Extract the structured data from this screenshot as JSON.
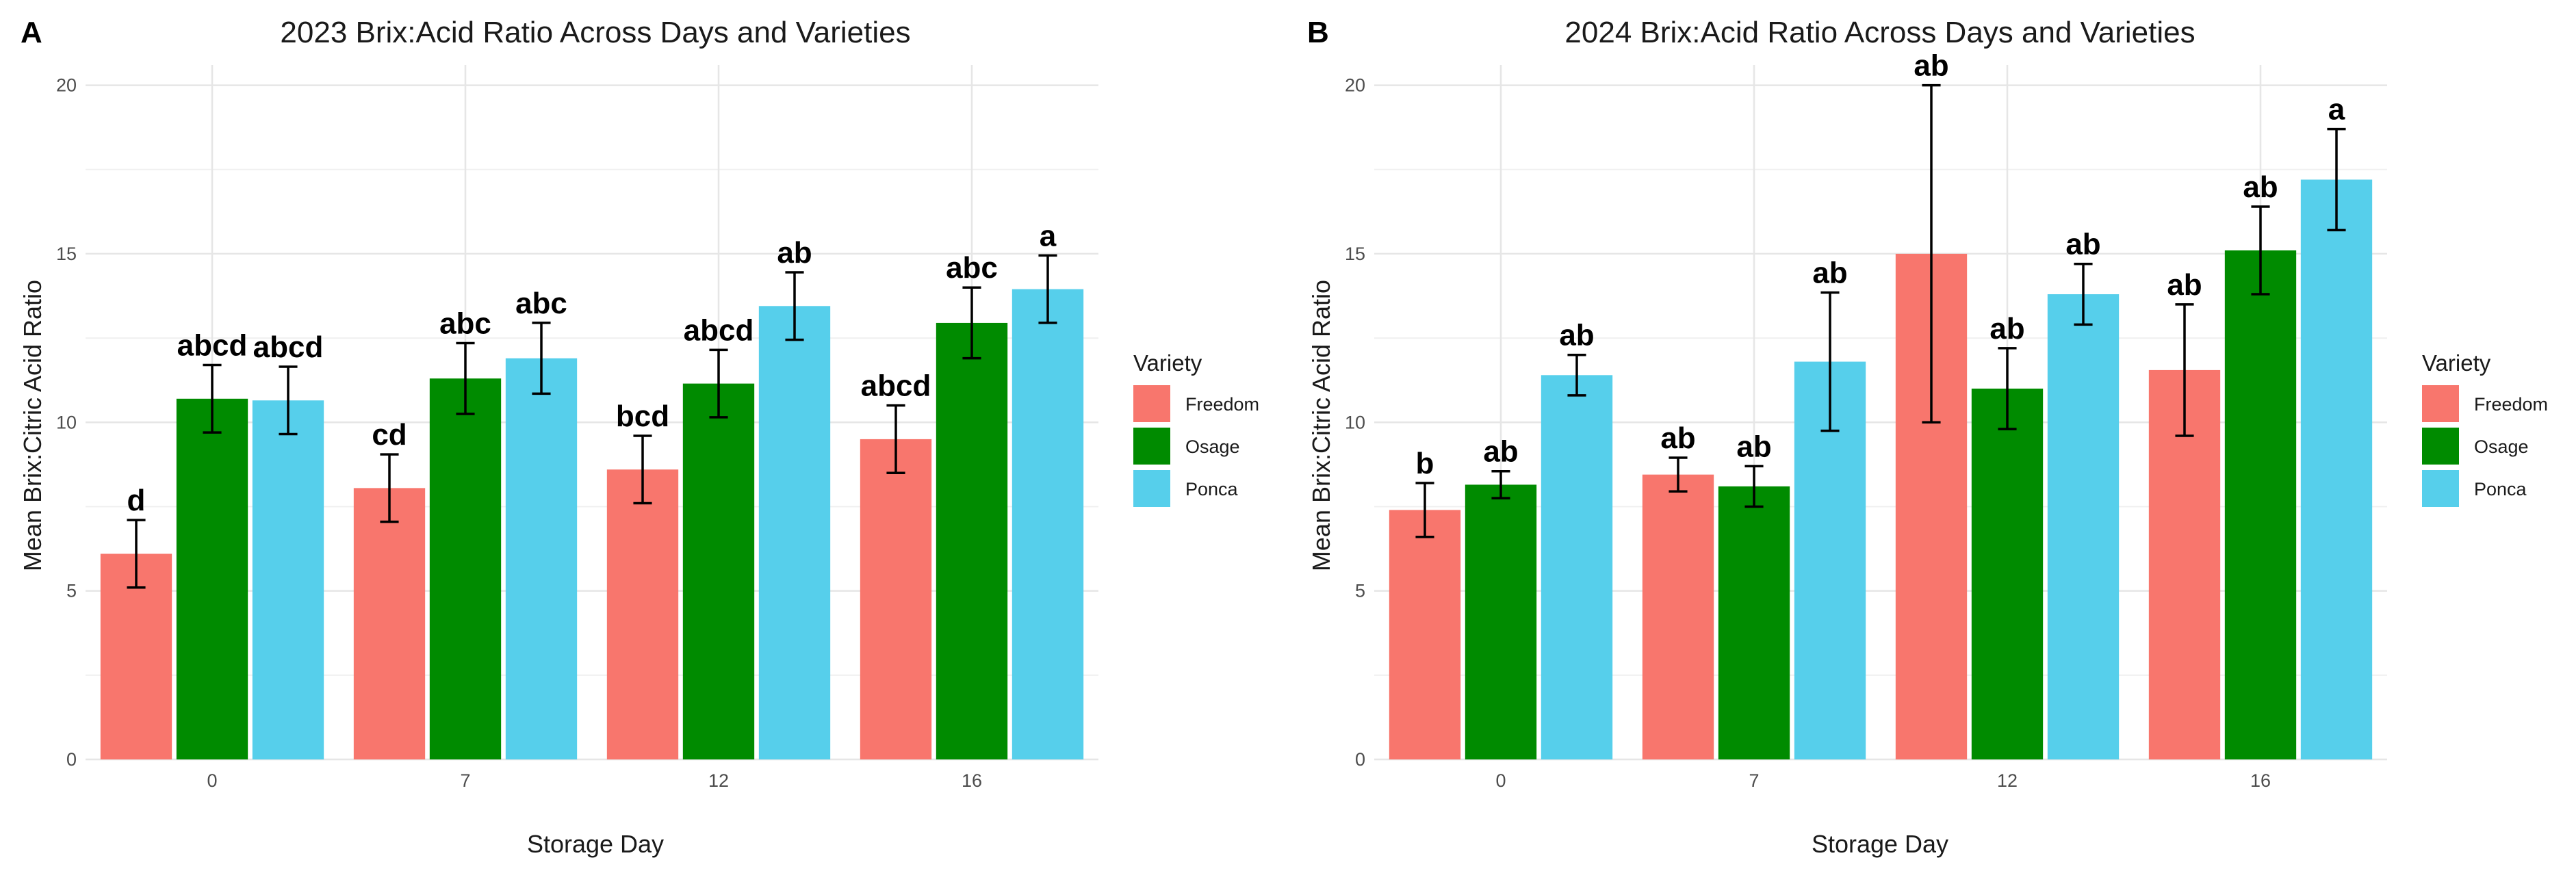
{
  "legend": {
    "title": "Variety",
    "items": [
      {
        "name": "Freedom",
        "color": "#F8766D"
      },
      {
        "name": "Osage",
        "color": "#008B00"
      },
      {
        "name": "Ponca",
        "color": "#56CFEB"
      }
    ]
  },
  "chart_data": [
    {
      "type": "bar",
      "panel": "A",
      "title": "2023 Brix:Acid Ratio Across Days and Varieties",
      "xlabel": "Storage Day",
      "ylabel": "Mean Brix:Citric Acid Ratio",
      "categories": [
        "0",
        "7",
        "12",
        "16"
      ],
      "ylim": [
        0,
        20.6
      ],
      "yticks": [
        0,
        5,
        10,
        15,
        20
      ],
      "series": [
        {
          "name": "Freedom",
          "color": "#F8766D",
          "values": [
            6.1,
            8.05,
            8.6,
            9.5
          ],
          "errors": [
            1.0,
            1.0,
            1.0,
            1.0
          ],
          "letters": [
            "d",
            "cd",
            "bcd",
            "abcd"
          ]
        },
        {
          "name": "Osage",
          "color": "#008B00",
          "values": [
            10.7,
            11.3,
            11.15,
            12.95
          ],
          "errors": [
            1.0,
            1.05,
            1.0,
            1.05
          ],
          "letters": [
            "abcd",
            "abc",
            "abcd",
            "abc"
          ]
        },
        {
          "name": "Ponca",
          "color": "#56CFEB",
          "values": [
            10.65,
            11.9,
            13.45,
            13.95
          ],
          "errors": [
            1.0,
            1.05,
            1.0,
            1.0
          ],
          "letters": [
            "abcd",
            "abc",
            "ab",
            "a"
          ]
        }
      ],
      "grid": true
    },
    {
      "type": "bar",
      "panel": "B",
      "title": "2024 Brix:Acid Ratio Across Days and Varieties",
      "xlabel": "Storage Day",
      "ylabel": "Mean Brix:Citric Acid Ratio",
      "categories": [
        "0",
        "7",
        "12",
        "16"
      ],
      "ylim": [
        0,
        20.6
      ],
      "yticks": [
        0,
        5,
        10,
        15,
        20
      ],
      "series": [
        {
          "name": "Freedom",
          "color": "#F8766D",
          "values": [
            7.4,
            8.45,
            15.0,
            11.55
          ],
          "errors": [
            0.8,
            0.5,
            5.0,
            1.95
          ],
          "letters": [
            "b",
            "ab",
            "ab",
            "ab"
          ]
        },
        {
          "name": "Osage",
          "color": "#008B00",
          "values": [
            8.15,
            8.1,
            11.0,
            15.1
          ],
          "errors": [
            0.4,
            0.6,
            1.2,
            1.3
          ],
          "letters": [
            "ab",
            "ab",
            "ab",
            "ab"
          ]
        },
        {
          "name": "Ponca",
          "color": "#56CFEB",
          "values": [
            11.4,
            11.8,
            13.8,
            17.2
          ],
          "errors": [
            0.6,
            2.05,
            0.9,
            1.5
          ],
          "letters": [
            "ab",
            "ab",
            "ab",
            "a"
          ]
        }
      ],
      "grid": true
    }
  ]
}
